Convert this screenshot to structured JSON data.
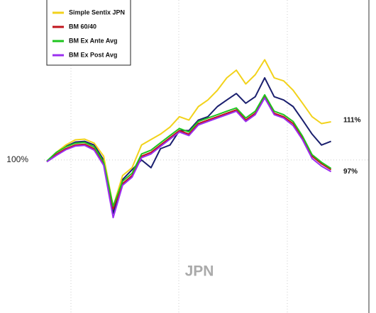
{
  "chart_data": {
    "type": "line",
    "watermark": "JPN",
    "log_scale": true,
    "grid": true,
    "x": [
      0,
      1,
      2,
      3,
      4,
      5,
      6,
      7,
      8,
      9,
      10,
      11,
      12,
      13,
      14,
      15,
      16,
      17,
      18,
      19,
      20,
      21,
      22,
      23,
      24,
      25,
      26,
      27,
      28,
      29,
      30
    ],
    "xlim": [
      0,
      34
    ],
    "ylim": [
      67,
      152
    ],
    "yticks": [
      {
        "value": 100,
        "label": "100%"
      }
    ],
    "series": [
      {
        "color": "#1a1f6e",
        "values": [
          99.6,
          102,
          103.6,
          104.8,
          105,
          104,
          100,
          87,
          95,
          97.5,
          100,
          98,
          103,
          104,
          108,
          108,
          111,
          112,
          115,
          117,
          119,
          116,
          118,
          124,
          118,
          117,
          115,
          111,
          107,
          104,
          105
        ]
      },
      {
        "name": "Simple Sentix JPN",
        "color": "#f2d21b",
        "values": [
          99.6,
          102,
          104,
          105.4,
          105.6,
          104.5,
          101,
          88.5,
          96,
          98,
          104,
          105.5,
          107,
          109,
          112,
          111,
          115,
          117,
          120,
          124,
          126.5,
          122,
          125,
          130,
          124,
          123,
          120,
          116,
          112,
          110,
          110.5
        ]
      },
      {
        "name": "BM 60/40",
        "color": "#c0141c",
        "values": [
          99.6,
          101.5,
          103,
          104,
          104.2,
          103,
          99,
          88,
          94,
          96,
          101,
          102,
          104,
          106,
          108,
          107,
          110,
          111,
          112,
          113,
          114,
          111,
          113,
          118,
          113,
          112,
          110,
          106,
          101,
          99,
          97.5
        ]
      },
      {
        "name": "BM Ex Ante Avg",
        "color": "#1ec41e",
        "values": [
          99.7,
          102,
          103.5,
          104.5,
          104.7,
          103.5,
          99.5,
          88.6,
          94.6,
          96.6,
          101.6,
          102.6,
          104.6,
          106.6,
          108.6,
          107.6,
          110.6,
          111.6,
          112.6,
          113.6,
          114.6,
          111.6,
          113.6,
          118.6,
          113.6,
          112.6,
          110.6,
          106.4,
          101.4,
          99.4,
          97.8
        ]
      },
      {
        "name": "BM Ex Post Avg",
        "color": "#9b2ff0",
        "values": [
          99.5,
          101.2,
          102.7,
          103.7,
          103.9,
          102.6,
          98.6,
          86,
          93.6,
          95.6,
          100.6,
          101.6,
          103.6,
          105.6,
          107.6,
          106.6,
          109.6,
          110.6,
          111.6,
          112.6,
          113.6,
          110.6,
          112.6,
          117.6,
          112.6,
          111.6,
          109.4,
          105.4,
          100.4,
          98.4,
          97
        ]
      }
    ],
    "end_labels": [
      {
        "value": 111,
        "label": "111%"
      },
      {
        "value": 97,
        "label": "97%"
      }
    ]
  }
}
